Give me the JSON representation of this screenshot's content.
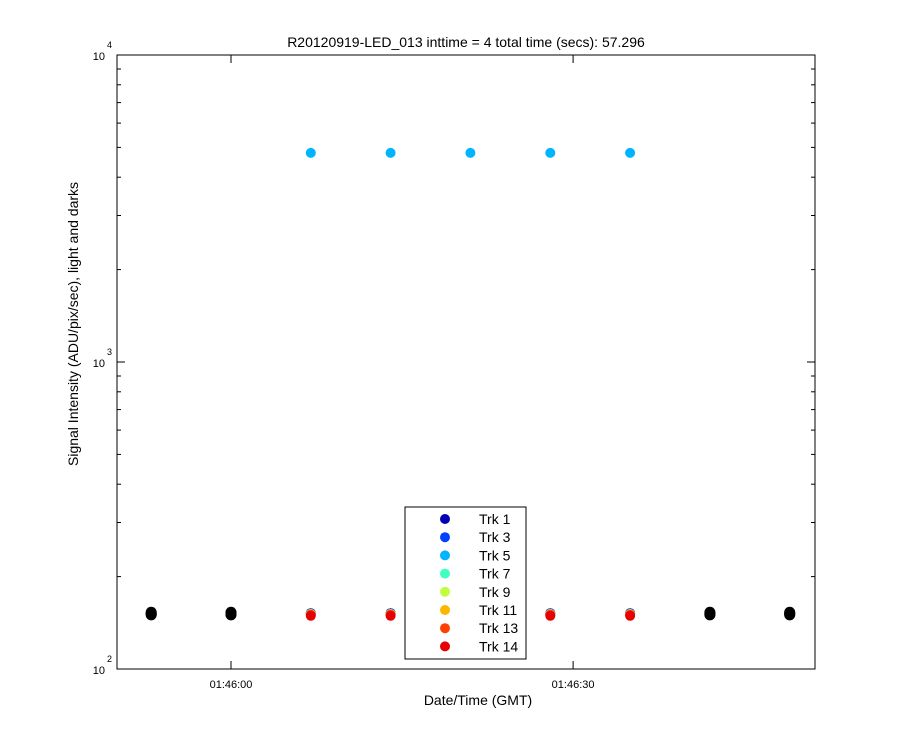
{
  "chart_data": {
    "type": "scatter",
    "title": "R20120919-LED_013 inttime = 4 total time (secs): 57.296",
    "xlabel": "Date/Time (GMT)",
    "ylabel": "Signal Intensity (ADU/pix/sec), light and darks",
    "y_scale": "log",
    "ylim": [
      100,
      10000
    ],
    "xlim": [
      "01:45:50",
      "01:46:49"
    ],
    "x_ticks": [
      "01:46:00",
      "01:46:30"
    ],
    "y_ticks": [
      {
        "base": "10",
        "exp": "2",
        "value": 100
      },
      {
        "base": "10",
        "exp": "3",
        "value": 1000
      },
      {
        "base": "10",
        "exp": "4",
        "value": 10000
      }
    ],
    "grid": false,
    "legend_position": "bottom-center",
    "light_times": [
      "01:46:07",
      "01:46:14",
      "01:46:21",
      "01:46:28",
      "01:46:35"
    ],
    "dark_times": [
      "01:45:53",
      "01:46:00",
      "01:46:42",
      "01:46:49"
    ],
    "series": [
      {
        "name": "Trk 1",
        "color": "#0000b3",
        "light": [
          152,
          152,
          152,
          152,
          152
        ]
      },
      {
        "name": "Trk 3",
        "color": "#0040ff",
        "light": [
          152,
          152,
          152,
          152,
          152
        ]
      },
      {
        "name": "Trk 5",
        "color": "#00b4ff",
        "light": [
          4800,
          4800,
          4800,
          4800,
          4800
        ]
      },
      {
        "name": "Trk 7",
        "color": "#40ffbf",
        "light": [
          151,
          151,
          151,
          151,
          151
        ]
      },
      {
        "name": "Trk 9",
        "color": "#bfff40",
        "light": [
          151,
          151,
          151,
          151,
          151
        ]
      },
      {
        "name": "Trk 11",
        "color": "#ffb400",
        "light": [
          151,
          151,
          151,
          151,
          151
        ]
      },
      {
        "name": "Trk 13",
        "color": "#ff4000",
        "light": [
          150,
          150,
          150,
          150,
          150
        ]
      },
      {
        "name": "Trk 14",
        "color": "#e60000",
        "light": [
          149,
          149,
          149,
          149,
          149
        ]
      }
    ],
    "darks": {
      "color": "#000000",
      "values": [
        [
          150,
          151,
          152,
          153
        ],
        [
          150,
          151,
          152,
          153
        ],
        [
          150,
          151,
          152,
          153
        ],
        [
          150,
          151,
          152,
          153
        ]
      ]
    }
  }
}
